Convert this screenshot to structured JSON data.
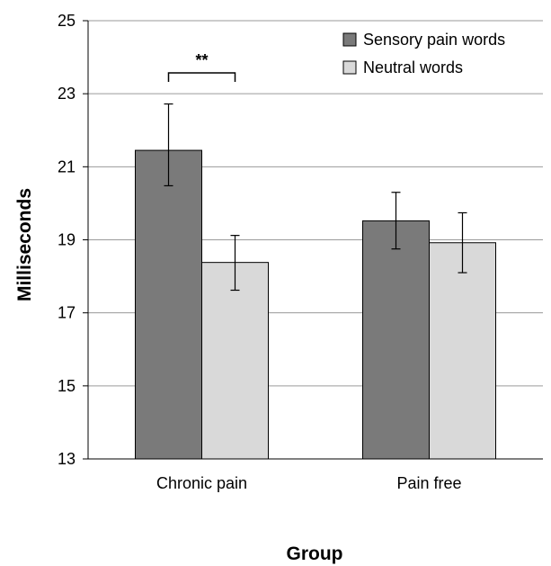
{
  "chart_data": {
    "type": "bar",
    "title": "",
    "xlabel": "Group",
    "ylabel": "Milliseconds",
    "categories": [
      "Chronic pain",
      "Pain free"
    ],
    "series": [
      {
        "name": "Sensory pain words",
        "color": "#7a7a7a",
        "values": [
          21.45,
          19.52
        ],
        "error": [
          [
            20.48,
            22.72
          ],
          [
            18.75,
            20.3
          ]
        ]
      },
      {
        "name": "Neutral words",
        "color": "#d9d9d9",
        "values": [
          18.38,
          18.92
        ],
        "error": [
          [
            17.62,
            19.12
          ],
          [
            18.1,
            19.74
          ]
        ]
      }
    ],
    "ylim": [
      13,
      25
    ],
    "yticks": [
      "13",
      "15",
      "17",
      "19",
      "21",
      "23",
      "25"
    ],
    "grid": true,
    "legend_position": "top-right",
    "annotation": {
      "text": "**",
      "category": "Chronic pain"
    }
  }
}
